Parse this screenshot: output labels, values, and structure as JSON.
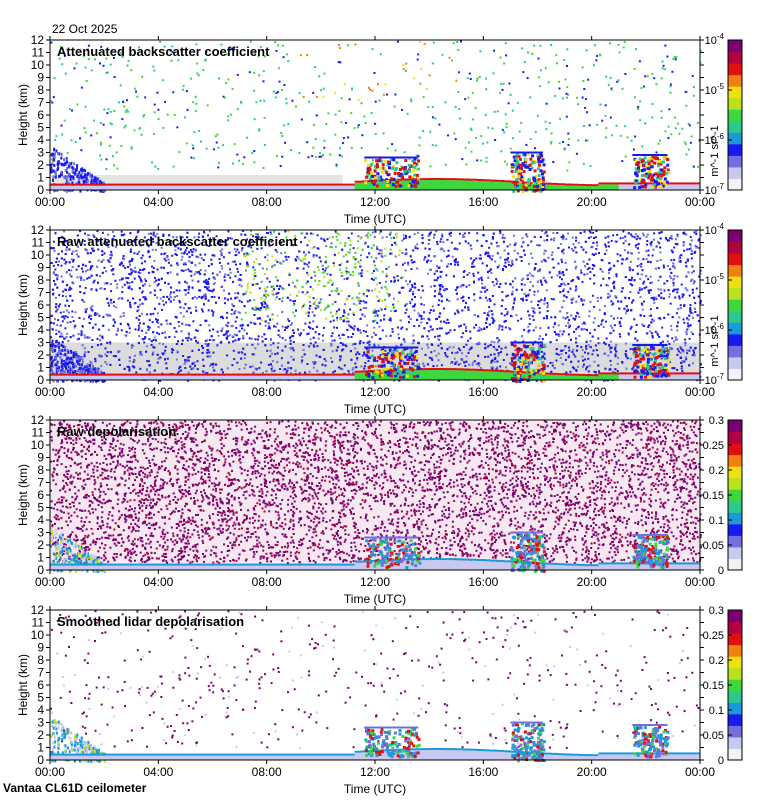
{
  "date_label": "22 Oct 2025",
  "footer": "Vantaa CL61D ceilometer",
  "colorscale": [
    "#f2f2f8",
    "#c8c8f0",
    "#7070e0",
    "#1a1af0",
    "#1a9ad8",
    "#2cc890",
    "#3ed83e",
    "#b8e21c",
    "#f0e010",
    "#f08010",
    "#e01010",
    "#b00040",
    "#7a0070"
  ],
  "chart_data": [
    {
      "type": "heatmap",
      "title": "Attenuated backscatter coefficient",
      "xlabel": "Time (UTC)",
      "ylabel": "Height (km)",
      "x_ticks": [
        "00:00",
        "04:00",
        "08:00",
        "12:00",
        "16:00",
        "20:00",
        "00:00"
      ],
      "xlim_hours": [
        0,
        24
      ],
      "y_ticks": [
        0,
        1,
        2,
        3,
        4,
        5,
        6,
        7,
        8,
        9,
        10,
        11,
        12
      ],
      "ylim": [
        0,
        12
      ],
      "colorbar": {
        "scale": "log",
        "range": [
          1e-07,
          0.0001
        ],
        "labels": [
          "10^-7",
          "10^-6",
          "10^-5",
          "10^-4"
        ],
        "unit": "m^-1 sr^-1"
      },
      "noise": "sparse"
    },
    {
      "type": "heatmap",
      "title": "Raw attenuated backscatter coefficient",
      "xlabel": "Time (UTC)",
      "ylabel": "Height (km)",
      "x_ticks": [
        "00:00",
        "04:00",
        "08:00",
        "12:00",
        "16:00",
        "20:00",
        "00:00"
      ],
      "xlim_hours": [
        0,
        24
      ],
      "y_ticks": [
        0,
        1,
        2,
        3,
        4,
        5,
        6,
        7,
        8,
        9,
        10,
        11,
        12
      ],
      "ylim": [
        0,
        12
      ],
      "colorbar": {
        "scale": "log",
        "range": [
          1e-07,
          0.0001
        ],
        "labels": [
          "10^-7",
          "10^-6",
          "10^-5",
          "10^-4"
        ],
        "unit": "m^-1 sr^-1"
      },
      "noise": "dense-blue"
    },
    {
      "type": "heatmap",
      "title": "Raw depolarisation",
      "xlabel": "Time (UTC)",
      "ylabel": "Height (km)",
      "x_ticks": [
        "00:00",
        "04:00",
        "08:00",
        "12:00",
        "16:00",
        "20:00",
        "00:00"
      ],
      "xlim_hours": [
        0,
        24
      ],
      "y_ticks": [
        0,
        1,
        2,
        3,
        4,
        5,
        6,
        7,
        8,
        9,
        10,
        11,
        12
      ],
      "ylim": [
        0,
        12
      ],
      "colorbar": {
        "scale": "linear",
        "range": [
          0,
          0.3
        ],
        "labels": [
          "0",
          "0.05",
          "0.1",
          "0.15",
          "0.2",
          "0.25",
          "0.3"
        ],
        "unit": ""
      },
      "noise": "dense-purple"
    },
    {
      "type": "heatmap",
      "title": "Smoothed lidar depolarisation",
      "xlabel": "Time (UTC)",
      "ylabel": "Height (km)",
      "x_ticks": [
        "00:00",
        "04:00",
        "08:00",
        "12:00",
        "16:00",
        "20:00",
        "00:00"
      ],
      "xlim_hours": [
        0,
        24
      ],
      "y_ticks": [
        0,
        1,
        2,
        3,
        4,
        5,
        6,
        7,
        8,
        9,
        10,
        11,
        12
      ],
      "ylim": [
        0,
        12
      ],
      "colorbar": {
        "scale": "linear",
        "range": [
          0,
          0.3
        ],
        "labels": [
          "0",
          "0.05",
          "0.1",
          "0.15",
          "0.2",
          "0.25",
          "0.3"
        ],
        "unit": ""
      },
      "noise": "sparse-purple"
    }
  ]
}
